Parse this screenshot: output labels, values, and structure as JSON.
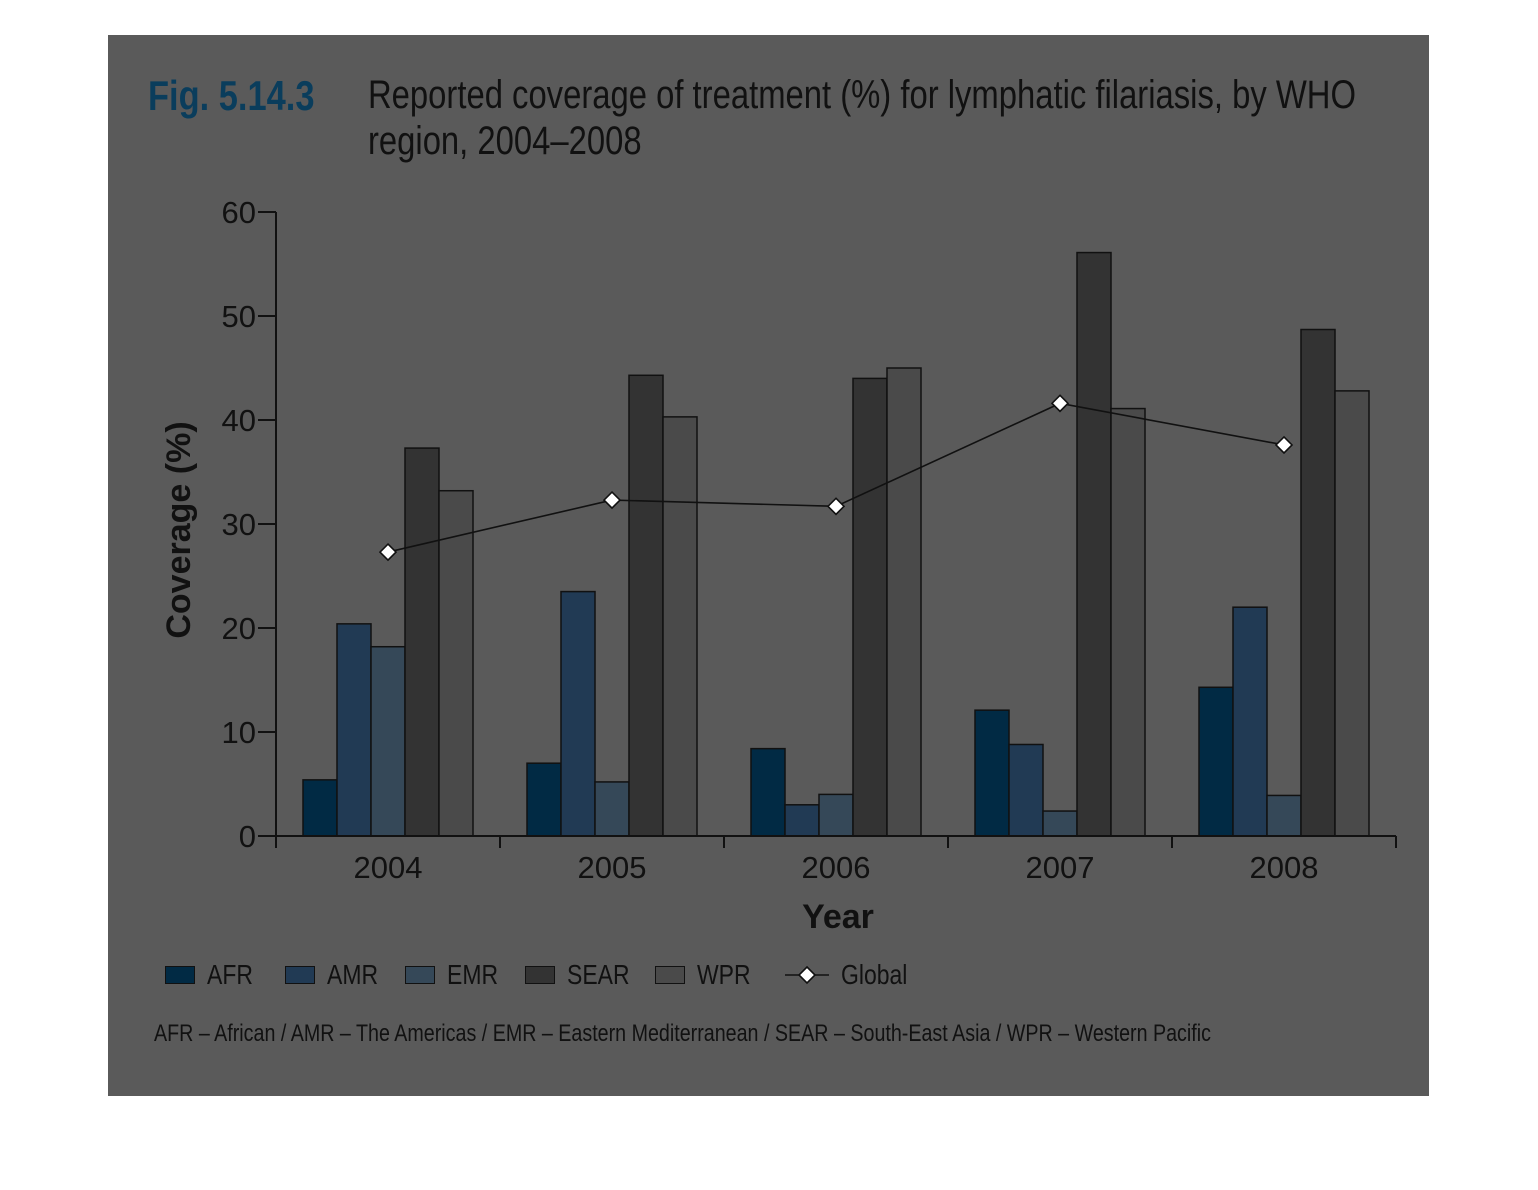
{
  "figure": {
    "label": "Fig. 5.14.3",
    "title": "Reported coverage of treatment (%) for lymphatic filariasis, by WHO region, 2004–2008",
    "footnote": "AFR – African / AMR – The Americas / EMR – Eastern Mediterranean / SEAR – South-East Asia / WPR – Western Pacific"
  },
  "colors": {
    "panel": "#5a5a5a",
    "fig_label": "#0a3d5c",
    "series": {
      "AFR": "#012a44",
      "AMR": "#213a54",
      "EMR": "#354858",
      "SEAR": "#333333",
      "WPR": "#4a4a4a",
      "Global": "#111111"
    }
  },
  "chart_data": {
    "type": "bar",
    "categories": [
      "2004",
      "2005",
      "2006",
      "2007",
      "2008"
    ],
    "xlabel": "Year",
    "ylabel": "Coverage (%)",
    "ylim": [
      0,
      60
    ],
    "yticks": [
      0,
      10,
      20,
      30,
      40,
      50,
      60
    ],
    "series": [
      {
        "name": "AFR",
        "values": [
          5.4,
          7.0,
          8.4,
          12.1,
          14.3
        ]
      },
      {
        "name": "AMR",
        "values": [
          20.4,
          23.5,
          3.0,
          8.8,
          22.0
        ]
      },
      {
        "name": "EMR",
        "values": [
          18.2,
          5.2,
          4.0,
          2.4,
          3.9
        ]
      },
      {
        "name": "SEAR",
        "values": [
          37.3,
          44.3,
          44.0,
          56.1,
          48.7
        ]
      },
      {
        "name": "WPR",
        "values": [
          33.2,
          40.3,
          45.0,
          41.1,
          42.8
        ]
      }
    ],
    "line_series": {
      "name": "Global",
      "values": [
        27.3,
        32.3,
        31.7,
        41.6,
        37.6
      ]
    },
    "legend": [
      "AFR",
      "AMR",
      "EMR",
      "SEAR",
      "WPR",
      "Global"
    ],
    "legend_position": "bottom-left",
    "grid": false
  }
}
